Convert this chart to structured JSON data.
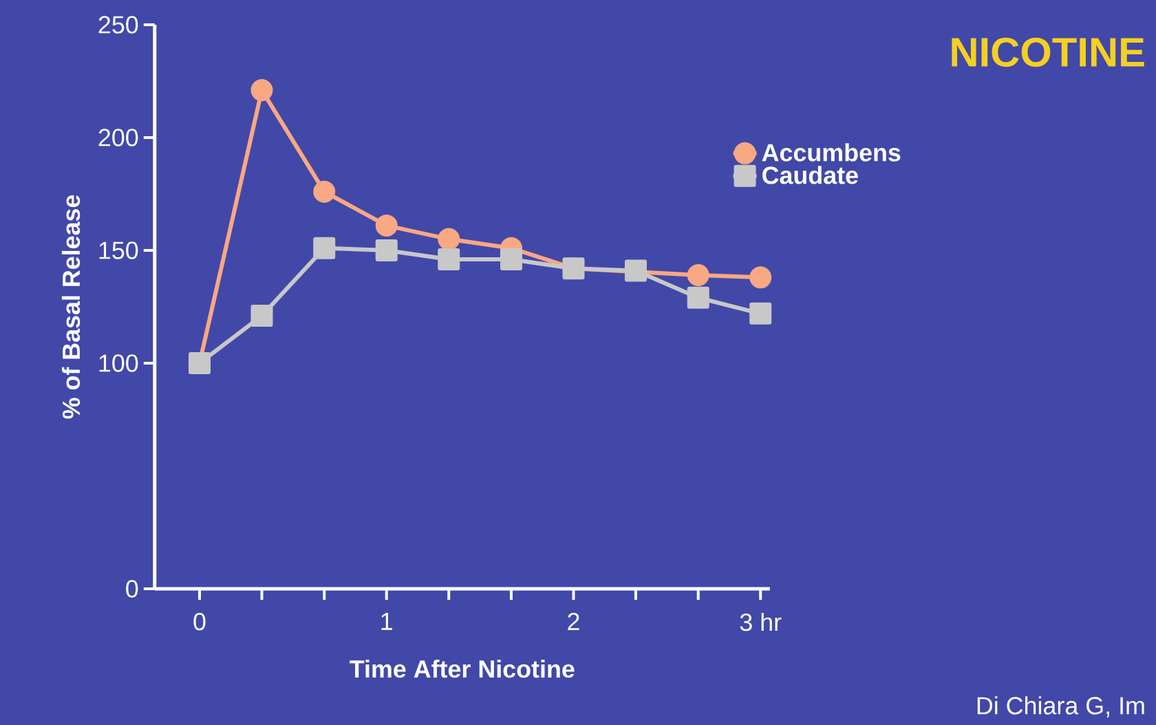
{
  "chart_data": {
    "type": "line",
    "title": "NICOTINE",
    "xlabel": "Time After Nicotine",
    "ylabel": "% of Basal Release",
    "annotations": [
      "Di Chiara G, Im"
    ],
    "x": [
      0,
      0.333,
      0.667,
      1,
      1.333,
      1.667,
      2,
      2.333,
      2.667,
      3
    ],
    "series": [
      {
        "name": "Accumbens",
        "color": "#f8a882",
        "marker": "circle",
        "values": [
          100,
          221,
          176,
          161,
          155,
          151,
          142,
          null,
          139,
          138
        ]
      },
      {
        "name": "Caudate",
        "color": "#c8c8c8",
        "marker": "square",
        "values": [
          100,
          121,
          151,
          150,
          146,
          146,
          142,
          141,
          129,
          122
        ]
      }
    ],
    "xlim": [
      -0.24,
      3.05
    ],
    "ylim": [
      0,
      250
    ],
    "xticks": [
      0,
      {
        "value": 0.333,
        "label": null
      },
      {
        "value": 0.667,
        "label": null
      },
      1,
      {
        "value": 1.333,
        "label": null
      },
      {
        "value": 1.667,
        "label": null
      },
      2,
      {
        "value": 2.333,
        "label": null
      },
      {
        "value": 2.667,
        "label": null
      },
      {
        "value": 3,
        "label": "3 hr"
      }
    ],
    "yticks": [
      0,
      100,
      150,
      200,
      250
    ],
    "grid": false,
    "legend": "top right",
    "line_style": "solid"
  }
}
